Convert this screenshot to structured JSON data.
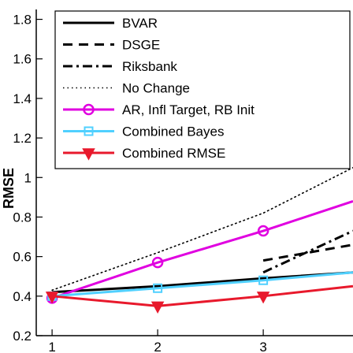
{
  "chart_data": {
    "type": "line",
    "ylabel": "RMSE",
    "xlabel": "",
    "title": "",
    "xlim": [
      0.85,
      3.85
    ],
    "ylim": [
      0.2,
      1.85
    ],
    "x_ticks": [
      1,
      2,
      3
    ],
    "y_ticks": [
      0.2,
      0.4,
      0.6,
      0.8,
      1,
      1.2,
      1.4,
      1.6,
      1.8
    ],
    "y_tick_labels": [
      "0.2",
      "0.4",
      "0.6",
      "0.8",
      "1",
      "1.2",
      "1.4",
      "1.6",
      "1.8"
    ],
    "legend_position": "top-right",
    "x": [
      1,
      2,
      3,
      3.85
    ],
    "series": [
      {
        "name": "BVAR",
        "color": "#000000",
        "style": "solid",
        "marker": "none",
        "values": [
          0.42,
          0.45,
          0.49,
          0.52
        ]
      },
      {
        "name": "DSGE",
        "color": "#000000",
        "style": "dashed",
        "marker": "none",
        "values": [
          null,
          null,
          0.58,
          0.66
        ]
      },
      {
        "name": "Riksbank",
        "color": "#000000",
        "style": "dashdot",
        "marker": "none",
        "values": [
          null,
          null,
          0.52,
          0.73
        ]
      },
      {
        "name": "No Change",
        "color": "#000000",
        "style": "dotted",
        "marker": "none",
        "values": [
          0.43,
          0.62,
          0.82,
          1.05
        ]
      },
      {
        "name": "AR, Infl Target, RB Init",
        "color": "#e000e0",
        "style": "solid",
        "marker": "circle",
        "values": [
          0.39,
          0.57,
          0.73,
          0.88
        ]
      },
      {
        "name": "Combined Bayes",
        "color": "#50d0ff",
        "style": "solid",
        "marker": "square",
        "values": [
          0.4,
          0.44,
          0.48,
          0.52
        ]
      },
      {
        "name": "Combined RMSE",
        "color": "#e8192c",
        "style": "solid",
        "marker": "triangle-down",
        "values": [
          0.4,
          0.35,
          0.4,
          0.45
        ]
      }
    ]
  }
}
